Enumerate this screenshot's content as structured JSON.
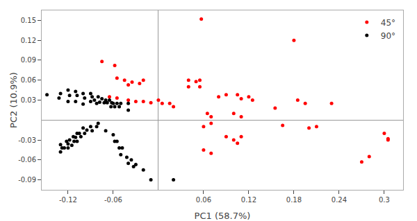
{
  "chart_data": {
    "type": "scatter",
    "xlabel": "PC1 (58.7%)",
    "ylabel": "PC2 (10.9%)",
    "xlim": [
      -0.155,
      0.325
    ],
    "ylim": [
      -0.105,
      0.165
    ],
    "xticks": [
      -0.12,
      -0.06,
      0.06,
      0.12,
      0.18,
      0.24,
      0.3
    ],
    "yticks": [
      -0.09,
      -0.06,
      -0.03,
      0.03,
      0.06,
      0.09,
      0.12,
      0.15
    ],
    "grid": false,
    "legend": "upper right",
    "series": [
      {
        "name": "45°",
        "color": "#ff0000",
        "x": [
          0.057,
          -0.075,
          -0.058,
          -0.055,
          -0.045,
          -0.035,
          -0.04,
          -0.02,
          -0.025,
          -0.065,
          -0.055,
          -0.04,
          -0.03,
          -0.02,
          -0.01,
          0.0,
          0.005,
          0.015,
          0.02,
          0.04,
          0.05,
          0.04,
          0.055,
          0.055,
          0.065,
          0.07,
          0.06,
          0.07,
          0.08,
          0.09,
          0.105,
          0.11,
          0.1,
          0.11,
          0.12,
          0.125,
          0.09,
          0.1,
          0.105,
          0.11,
          0.06,
          0.07,
          0.155,
          0.165,
          0.18,
          0.185,
          0.195,
          0.2,
          0.23,
          0.21,
          0.27,
          0.28,
          0.3,
          0.305,
          0.305
        ],
        "values": [
          0.152,
          0.088,
          0.082,
          0.063,
          0.06,
          0.057,
          0.053,
          0.06,
          0.055,
          0.035,
          0.033,
          0.03,
          0.028,
          0.028,
          0.026,
          0.03,
          0.025,
          0.025,
          0.02,
          0.06,
          0.058,
          0.05,
          0.06,
          0.05,
          0.01,
          0.005,
          -0.01,
          -0.005,
          0.035,
          0.038,
          0.038,
          0.032,
          0.01,
          0.005,
          0.035,
          0.03,
          -0.025,
          -0.03,
          -0.035,
          -0.025,
          -0.045,
          -0.05,
          0.018,
          -0.008,
          0.12,
          0.03,
          0.025,
          -0.012,
          0.025,
          -0.01,
          -0.063,
          -0.055,
          -0.02,
          -0.028,
          -0.03
        ]
      },
      {
        "name": "90°",
        "color": "#000000",
        "x": [
          -0.148,
          -0.13,
          -0.132,
          -0.12,
          -0.118,
          -0.12,
          -0.11,
          -0.108,
          -0.11,
          -0.1,
          -0.098,
          -0.1,
          -0.09,
          -0.088,
          -0.09,
          -0.085,
          -0.082,
          -0.08,
          -0.078,
          -0.075,
          -0.072,
          -0.07,
          -0.068,
          -0.065,
          -0.062,
          -0.063,
          -0.06,
          -0.058,
          -0.055,
          -0.052,
          -0.05,
          -0.04,
          -0.04,
          -0.08,
          -0.082,
          -0.09,
          -0.088,
          -0.095,
          -0.1,
          -0.098,
          -0.105,
          -0.103,
          -0.108,
          -0.11,
          -0.108,
          -0.113,
          -0.112,
          -0.115,
          -0.118,
          -0.12,
          -0.12,
          -0.122,
          -0.125,
          -0.13,
          -0.128,
          -0.13,
          -0.07,
          -0.06,
          -0.058,
          -0.055,
          -0.052,
          -0.048,
          -0.05,
          -0.042,
          -0.04,
          -0.036,
          -0.033,
          -0.03,
          -0.02,
          -0.01,
          0.02
        ],
        "values": [
          0.038,
          0.04,
          0.033,
          0.045,
          0.037,
          0.028,
          0.043,
          0.037,
          0.028,
          0.04,
          0.033,
          0.024,
          0.04,
          0.035,
          0.028,
          0.03,
          0.025,
          0.035,
          0.027,
          0.032,
          0.026,
          0.03,
          0.026,
          0.03,
          0.026,
          0.02,
          0.025,
          0.02,
          0.025,
          0.02,
          0.025,
          0.025,
          0.015,
          -0.005,
          -0.01,
          -0.01,
          -0.016,
          -0.015,
          -0.012,
          -0.02,
          -0.02,
          -0.025,
          -0.02,
          -0.026,
          -0.032,
          -0.025,
          -0.032,
          -0.038,
          -0.03,
          -0.036,
          -0.042,
          -0.032,
          -0.042,
          -0.037,
          -0.042,
          -0.048,
          -0.016,
          -0.022,
          -0.032,
          -0.032,
          -0.042,
          -0.042,
          -0.052,
          -0.056,
          -0.065,
          -0.06,
          -0.07,
          -0.067,
          -0.075,
          -0.09,
          -0.09
        ]
      }
    ]
  }
}
